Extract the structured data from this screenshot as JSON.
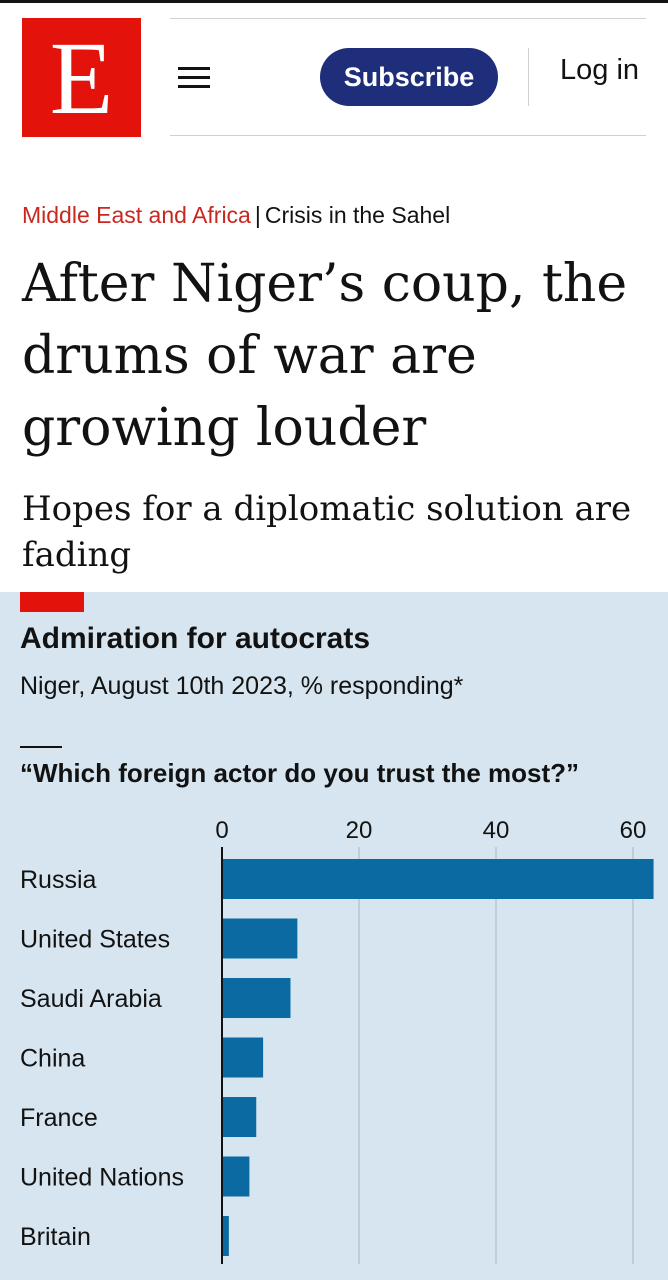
{
  "header": {
    "logo_letter": "E",
    "subscribe_label": "Subscribe",
    "login_label": "Log in"
  },
  "article": {
    "section": "Middle East and Africa",
    "separator": "|",
    "topic": "Crisis in the Sahel",
    "headline": "After Niger’s coup, the drums of war are growing louder",
    "standfirst": "Hopes for a diplomatic solution are fading"
  },
  "colors": {
    "brand_red": "#e3120b",
    "subscribe_blue": "#1f2e7a",
    "chart_background": "#d6e5ef",
    "bar_blue": "#0a6aa1"
  },
  "icons": {
    "menu": "hamburger-menu-icon"
  },
  "chart_data": {
    "type": "bar",
    "orientation": "horizontal",
    "title": "Admiration for autocrats",
    "subtitle": "Niger, August 10th 2023, % responding*",
    "question": "“Which foreign actor do you trust the most?”",
    "categories": [
      "Russia",
      "United States",
      "Saudi Arabia",
      "China",
      "France",
      "United Nations",
      "Britain"
    ],
    "values": [
      63,
      11,
      10,
      6,
      5,
      4,
      1
    ],
    "xlim": [
      0,
      63
    ],
    "xticks": [
      0,
      20,
      40,
      60
    ],
    "xtick_labels": [
      "0",
      "20",
      "40",
      "60"
    ],
    "axis_position": "top",
    "grid": true,
    "legend": "none"
  }
}
